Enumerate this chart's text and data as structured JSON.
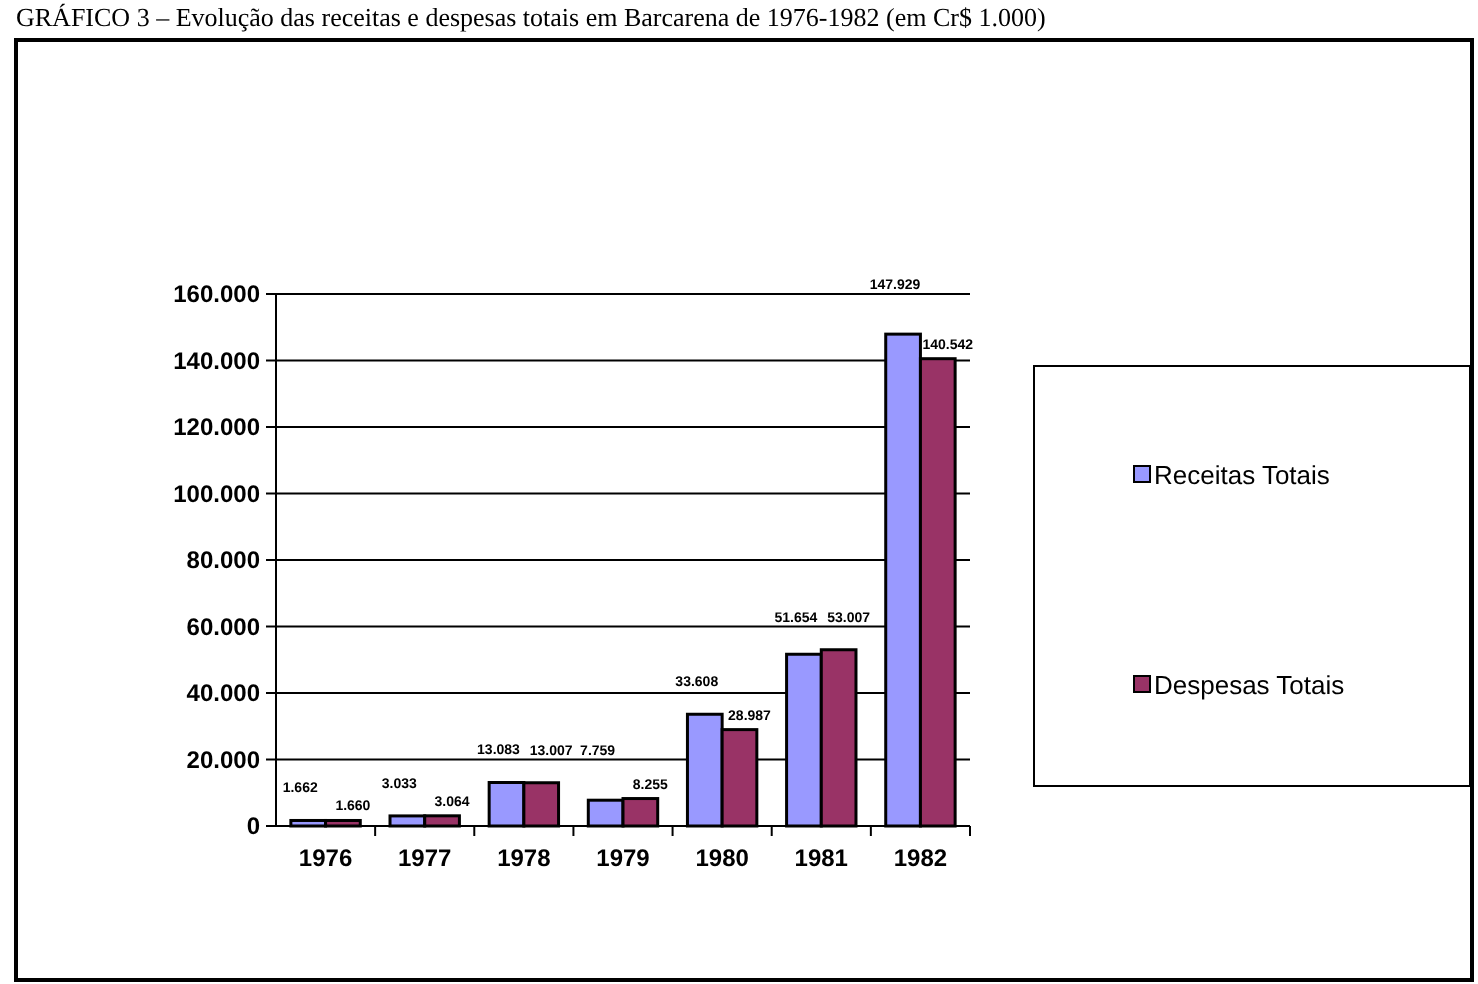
{
  "chart_data": {
    "type": "bar",
    "title": "GRÁFICO 3 – Evolução das receitas e despesas totais em Barcarena de 1976-1982 (em Cr$ 1.000)",
    "categories": [
      "1976",
      "1977",
      "1978",
      "1979",
      "1980",
      "1981",
      "1982"
    ],
    "series": [
      {
        "name": "Receitas Totais",
        "color": "#9999ff",
        "values": [
          1662,
          3033,
          13083,
          7759,
          33608,
          51654,
          147929
        ],
        "value_labels": [
          "1.662",
          "3.033",
          "13.083",
          "7.759",
          "33.608",
          "51.654",
          "147.929"
        ]
      },
      {
        "name": "Despesas Totais",
        "color": "#993366",
        "values": [
          1660,
          3064,
          13007,
          8255,
          28987,
          53007,
          140542
        ],
        "value_labels": [
          "1.660",
          "3.064",
          "13.007",
          "8.255",
          "28.987",
          "53.007",
          "140.542"
        ]
      }
    ],
    "ylim": [
      0,
      160000
    ],
    "yticks": [
      {
        "value": 0,
        "label": "0"
      },
      {
        "value": 20000,
        "label": "20.000"
      },
      {
        "value": 40000,
        "label": "40.000"
      },
      {
        "value": 60000,
        "label": "60.000"
      },
      {
        "value": 80000,
        "label": "80.000"
      },
      {
        "value": 100000,
        "label": "100.000"
      },
      {
        "value": 120000,
        "label": "120.000"
      },
      {
        "value": 140000,
        "label": "140.000"
      },
      {
        "value": 160000,
        "label": "160.000"
      }
    ],
    "grid": "y",
    "legend": "right"
  }
}
